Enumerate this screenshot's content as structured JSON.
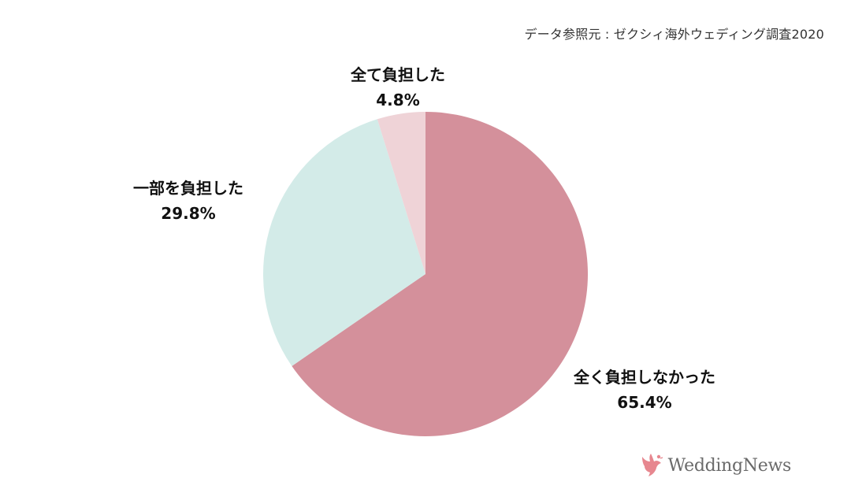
{
  "source_note": "データ参照元 : ゼクシィ海外ウェディング調査2020",
  "brand": {
    "logo_text": "WeddingNews",
    "logo_icon": "dove-icon",
    "logo_color": "#e7878f"
  },
  "chart_data": {
    "type": "pie",
    "start": "12 o'clock, clockwise",
    "slices": [
      {
        "label": "全く負担しなかった",
        "value": 65.4,
        "value_label": "65.4%",
        "color": "#d4909b"
      },
      {
        "label": "一部を負担した",
        "value": 29.8,
        "value_label": "29.8%",
        "color": "#d3ebe8"
      },
      {
        "label": "全て負担した",
        "value": 4.8,
        "value_label": "4.8%",
        "color": "#efd3d7"
      }
    ]
  }
}
